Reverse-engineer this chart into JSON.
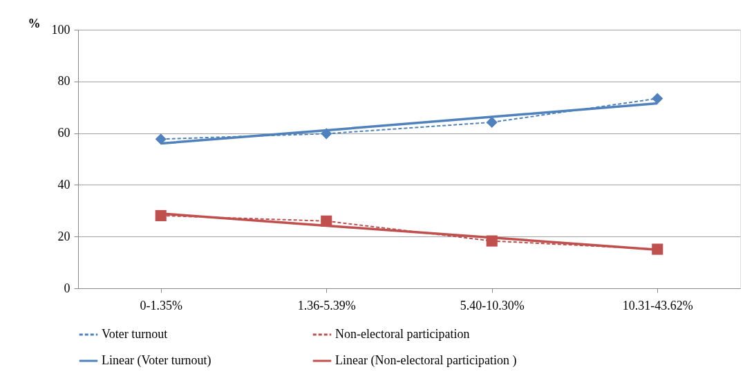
{
  "chart_data": {
    "type": "line",
    "ylabel": "%",
    "categories": [
      "0-1.35%",
      "1.36-5.39%",
      "5.40-10.30%",
      "10.31-43.62%"
    ],
    "series": [
      {
        "name": "Voter turnout",
        "color": "#4f81bd",
        "values": [
          57.7,
          59.8,
          64.2,
          73.4
        ],
        "marker": "diamond",
        "line_style": "dashed"
      },
      {
        "name": "Non-electoral participation",
        "color": "#c0504d",
        "values": [
          28.1,
          26.0,
          18.3,
          15.1
        ],
        "marker": "square",
        "line_style": "dashed"
      },
      {
        "name": "Linear (Voter turnout)",
        "color": "#4f81bd",
        "values": [
          56.0,
          61.1,
          66.3,
          71.5
        ],
        "marker": "none",
        "line_style": "solid"
      },
      {
        "name": "Linear (Non-electoral participation )",
        "color": "#c0504d",
        "values": [
          28.9,
          24.2,
          19.6,
          14.9
        ],
        "marker": "none",
        "line_style": "solid"
      }
    ],
    "ylim": [
      0,
      100
    ],
    "yticks": [
      0,
      20,
      40,
      60,
      80,
      100
    ],
    "grid": "y",
    "legend": "bottom"
  }
}
